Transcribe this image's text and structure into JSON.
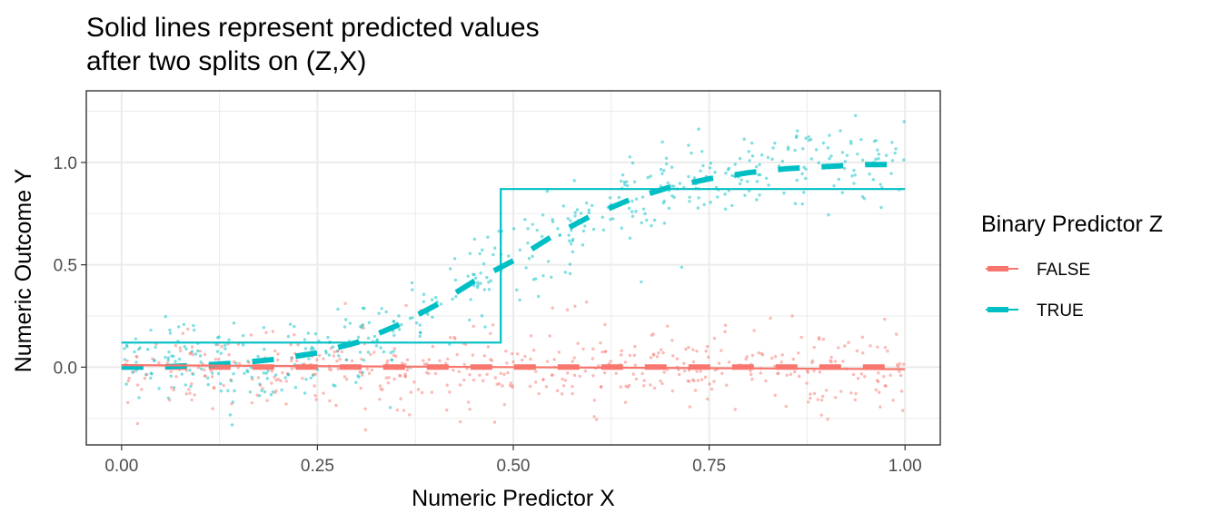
{
  "chart_data": {
    "type": "scatter",
    "title_lines": [
      "Solid lines represent predicted values",
      "after two splits on (Z,X)"
    ],
    "xlabel": "Numeric Predictor X",
    "ylabel": "Numeric Outcome Y",
    "xlim": [
      -0.045,
      1.045
    ],
    "ylim": [
      -0.38,
      1.35
    ],
    "x_ticks": [
      0,
      0.25,
      0.5,
      0.75,
      1
    ],
    "x_tick_labels": [
      "0.00",
      "0.25",
      "0.50",
      "0.75",
      "1.00"
    ],
    "y_ticks": [
      0,
      0.5,
      1
    ],
    "y_tick_labels": [
      "0.0",
      "0.5",
      "1.0"
    ],
    "grid": true,
    "legend": {
      "title": "Binary Predictor Z",
      "position": "right",
      "entries": [
        {
          "label": "FALSE",
          "color": "#F8766D"
        },
        {
          "label": "TRUE",
          "color": "#00BFC4"
        }
      ]
    },
    "series": [
      {
        "name": "FALSE",
        "color": "#F8766D",
        "points": "approximately 500 jittered points, y ≈ 0 with noise sd ≈ 0.1, x uniform on [0, 1]",
        "true_mean_dashed": {
          "x": [
            0,
            1
          ],
          "y": [
            0,
            0
          ]
        },
        "predicted_solid": {
          "x": [
            0,
            1
          ],
          "y": [
            0.01,
            -0.01
          ]
        }
      },
      {
        "name": "TRUE",
        "color": "#00BFC4",
        "points": "approximately 500 jittered points around a logistic curve, noise sd ≈ 0.1",
        "true_mean_dashed": {
          "x": [
            0,
            0.05,
            0.1,
            0.15,
            0.2,
            0.25,
            0.3,
            0.35,
            0.4,
            0.45,
            0.5,
            0.55,
            0.6,
            0.65,
            0.7,
            0.75,
            0.8,
            0.85,
            0.9,
            0.95,
            1.0
          ],
          "y": [
            0.0,
            0.0,
            0.01,
            0.02,
            0.04,
            0.07,
            0.12,
            0.2,
            0.3,
            0.42,
            0.52,
            0.64,
            0.74,
            0.82,
            0.88,
            0.92,
            0.95,
            0.97,
            0.98,
            0.99,
            0.99
          ]
        },
        "predicted_solid": {
          "split_x": 0.484,
          "x": [
            0,
            0.484,
            0.484,
            1
          ],
          "y": [
            0.12,
            0.12,
            0.87,
            0.87
          ]
        }
      }
    ]
  }
}
